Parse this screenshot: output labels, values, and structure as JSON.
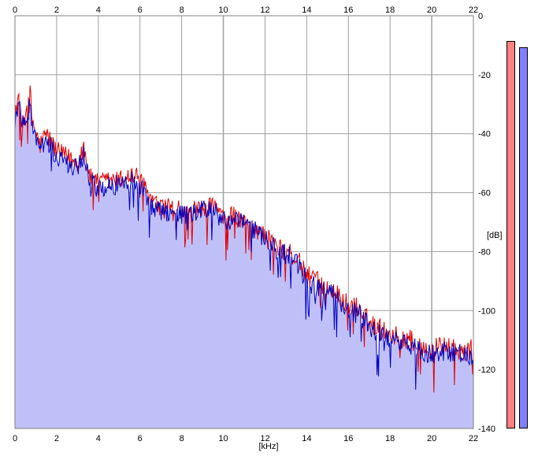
{
  "chart_data": {
    "type": "area",
    "title": "",
    "xlabel": "[kHz]",
    "ylabel": "[dB]",
    "xlim": [
      0,
      22
    ],
    "ylim": [
      -140,
      0
    ],
    "x_ticks": [
      "0",
      "2",
      "4",
      "6",
      "8",
      "10",
      "12",
      "14",
      "16",
      "18",
      "20",
      "22"
    ],
    "y_ticks": [
      "0",
      "-20",
      "-40",
      "-60",
      "-80",
      "-100",
      "-120",
      "-140"
    ],
    "grid": true,
    "colors": {
      "left": "#e00000",
      "right": "#0000c0",
      "fill": "#c0c0f8",
      "grid": "#a0a0a0"
    },
    "series": [
      {
        "channel": "left",
        "color": "#e00000",
        "x": [
          0,
          0.2,
          0.4,
          0.6,
          0.7,
          0.8,
          1.0,
          1.2,
          1.5,
          2.0,
          2.5,
          3.0,
          3.3,
          3.6,
          4.0,
          4.5,
          5.0,
          5.5,
          6.0,
          6.5,
          7.0,
          7.5,
          8.0,
          8.5,
          9.0,
          9.5,
          10.0,
          10.5,
          11.0,
          11.5,
          12.0,
          12.5,
          13.0,
          13.5,
          14.0,
          14.5,
          15.0,
          15.5,
          16.0,
          16.5,
          17.0,
          17.5,
          18.0,
          18.5,
          19.0,
          19.5,
          20.0,
          20.5,
          21.0,
          21.5,
          22.0
        ],
        "values": [
          -32,
          -28,
          -36,
          -30,
          -22,
          -34,
          -40,
          -44,
          -40,
          -46,
          -48,
          -50,
          -44,
          -55,
          -57,
          -56,
          -56,
          -54,
          -55,
          -62,
          -66,
          -64,
          -67,
          -66,
          -67,
          -64,
          -69,
          -68,
          -70,
          -72,
          -75,
          -78,
          -80,
          -82,
          -88,
          -90,
          -92,
          -95,
          -98,
          -99,
          -104,
          -106,
          -108,
          -109,
          -110,
          -112,
          -113,
          -112,
          -113,
          -114,
          -113
        ]
      },
      {
        "channel": "right",
        "color": "#0000c0",
        "x": [
          0,
          0.2,
          0.4,
          0.6,
          0.7,
          0.8,
          1.0,
          1.2,
          1.5,
          2.0,
          2.5,
          3.0,
          3.3,
          3.6,
          4.0,
          4.5,
          5.0,
          5.5,
          6.0,
          6.5,
          7.0,
          7.5,
          8.0,
          8.5,
          9.0,
          9.5,
          10.0,
          10.5,
          11.0,
          11.5,
          12.0,
          12.5,
          13.0,
          13.5,
          14.0,
          14.5,
          15.0,
          15.5,
          16.0,
          16.5,
          17.0,
          17.5,
          18.0,
          18.5,
          19.0,
          19.5,
          20.0,
          20.5,
          21.0,
          21.5,
          22.0
        ],
        "values": [
          -36,
          -30,
          -38,
          -34,
          -30,
          -36,
          -42,
          -46,
          -42,
          -48,
          -50,
          -52,
          -47,
          -56,
          -59,
          -58,
          -57,
          -56,
          -57,
          -64,
          -67,
          -66,
          -68,
          -67,
          -66,
          -65,
          -70,
          -69,
          -71,
          -73,
          -76,
          -79,
          -81,
          -83,
          -90,
          -92,
          -93,
          -96,
          -100,
          -101,
          -105,
          -108,
          -110,
          -111,
          -112,
          -114,
          -115,
          -114,
          -114,
          -115,
          -115
        ]
      }
    ],
    "level_meters": [
      {
        "channel": "left",
        "color": "#ff8080"
      },
      {
        "channel": "right",
        "color": "#8080ff"
      }
    ]
  }
}
